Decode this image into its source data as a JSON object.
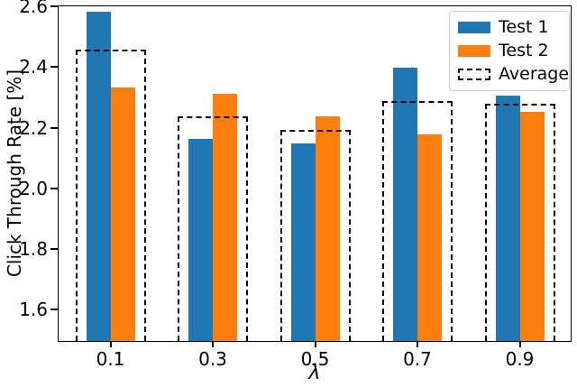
{
  "chart_data": {
    "type": "bar",
    "title": "",
    "xlabel": "λ",
    "ylabel": "Click Through Rate [%]",
    "categories": [
      "0.1",
      "0.3",
      "0.5",
      "0.7",
      "0.9"
    ],
    "series": [
      {
        "name": "Test 1",
        "color": "#1f77b4",
        "values": [
          2.585,
          2.165,
          2.15,
          2.4,
          2.31
        ]
      },
      {
        "name": "Test 2",
        "color": "#ff7f0e",
        "values": [
          2.335,
          2.315,
          2.24,
          2.18,
          2.255
        ]
      }
    ],
    "overlay": {
      "name": "Average",
      "style": "dashed-box",
      "color": "#000000",
      "values": [
        2.46,
        2.24,
        2.195,
        2.29,
        2.2825
      ]
    },
    "ylim": [
      1.5,
      2.6
    ],
    "yticks": [
      "1.6",
      "1.8",
      "2.0",
      "2.2",
      "2.4",
      "2.6"
    ],
    "xticks": [
      "0.1",
      "0.3",
      "0.5",
      "0.7",
      "0.9"
    ],
    "grid": false,
    "legend": {
      "position": "upper right",
      "entries": [
        "Test 1",
        "Test 2",
        "Average"
      ]
    }
  }
}
